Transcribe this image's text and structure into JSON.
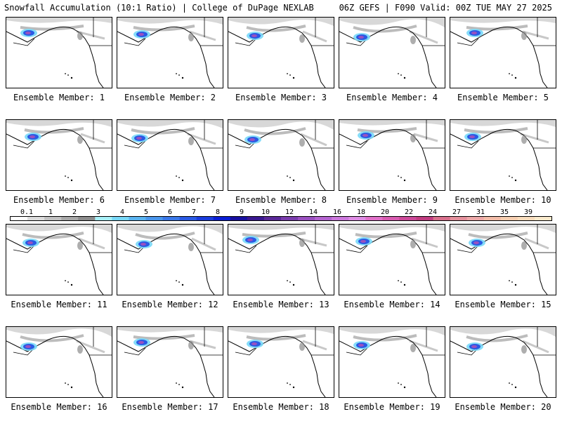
{
  "header": {
    "left": "Snowfall Accumulation (10:1 Ratio) | College of DuPage NEXLAB",
    "right": "06Z GEFS | F090 Valid: 00Z TUE MAY 27 2025"
  },
  "panels": [
    {
      "label": "Ensemble Member: 1"
    },
    {
      "label": "Ensemble Member: 2"
    },
    {
      "label": "Ensemble Member: 3"
    },
    {
      "label": "Ensemble Member: 4"
    },
    {
      "label": "Ensemble Member: 5"
    },
    {
      "label": "Ensemble Member: 6"
    },
    {
      "label": "Ensemble Member: 7"
    },
    {
      "label": "Ensemble Member: 8"
    },
    {
      "label": "Ensemble Member: 9"
    },
    {
      "label": "Ensemble Member: 10"
    },
    {
      "label": "Ensemble Member: 11"
    },
    {
      "label": "Ensemble Member: 12"
    },
    {
      "label": "Ensemble Member: 13"
    },
    {
      "label": "Ensemble Member: 14"
    },
    {
      "label": "Ensemble Member: 15"
    },
    {
      "label": "Ensemble Member: 16"
    },
    {
      "label": "Ensemble Member: 17"
    },
    {
      "label": "Ensemble Member: 18"
    },
    {
      "label": "Ensemble Member: 19"
    },
    {
      "label": "Ensemble Member: 20"
    }
  ],
  "colorbar": {
    "labels": [
      "0.1",
      "1",
      "2",
      "3",
      "4",
      "5",
      "6",
      "7",
      "8",
      "9",
      "10",
      "12",
      "14",
      "16",
      "18",
      "20",
      "22",
      "24",
      "27",
      "31",
      "35",
      "39"
    ],
    "colors": [
      "#ffffff",
      "#dcdcdc",
      "#c2c2c2",
      "#a8a8a8",
      "#8c8c8c",
      "#a8f0f8",
      "#78d8f8",
      "#5ab4f0",
      "#4a96ec",
      "#3a78e8",
      "#2a5ae4",
      "#1a3cdc",
      "#0a1ed4",
      "#1810a0",
      "#3a1890",
      "#5a2898",
      "#7a3cac",
      "#9a50c0",
      "#b464d0",
      "#cc78dc",
      "#de8ce4",
      "#e070c8",
      "#d85cb0",
      "#cc4898",
      "#c03c80",
      "#d8708c",
      "#e4909c",
      "#eca8a8",
      "#f2bca8",
      "#f6ceb0",
      "#f8dcbc",
      "#faeacc"
    ]
  }
}
